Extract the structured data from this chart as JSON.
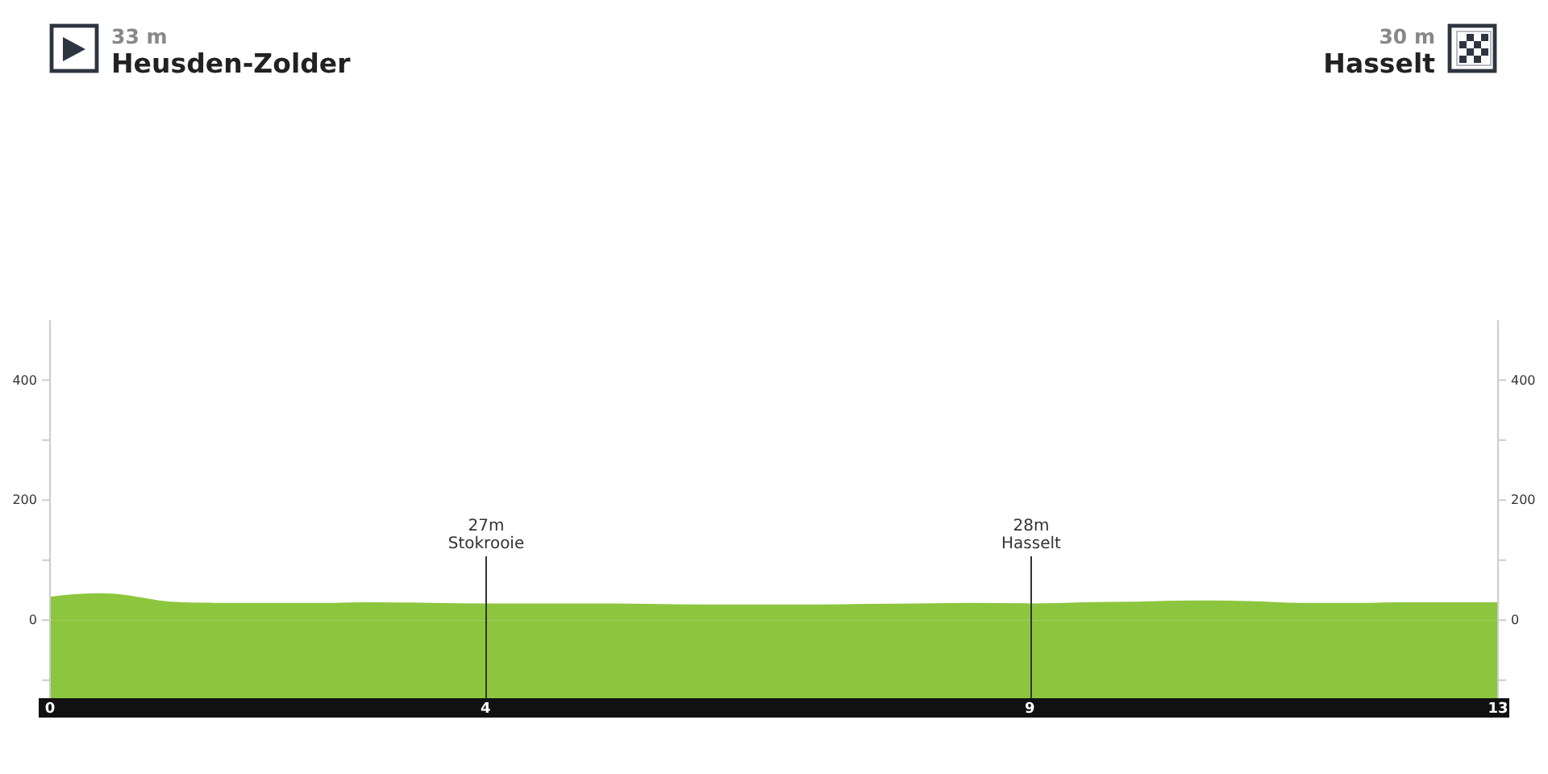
{
  "chart_data": {
    "type": "area",
    "x": [
      0,
      0.2,
      0.45,
      0.7,
      0.9,
      1.1,
      1.5,
      2.0,
      2.5,
      3.0,
      3.5,
      4.0,
      4.5,
      5.0,
      5.5,
      6.0,
      6.5,
      7.0,
      7.5,
      8.0,
      8.5,
      9.0,
      9.5,
      10.0,
      10.5,
      11.0,
      11.5,
      12.0,
      12.5,
      13.0,
      13.3
    ],
    "values": [
      39,
      43,
      45,
      42,
      36,
      31,
      29,
      29,
      29,
      30,
      29,
      28,
      28,
      28,
      27,
      26,
      26,
      26,
      27,
      28,
      29,
      28,
      30,
      31,
      33,
      32,
      29,
      29,
      30,
      30,
      30
    ],
    "color": "#8cc63e",
    "xlim": [
      0,
      13.3
    ],
    "xticks": [
      0,
      4,
      9,
      {
        "value": 13.3,
        "label": "13"
      }
    ],
    "ylim": [
      -130,
      500
    ],
    "yticks": [
      {
        "value": -100,
        "label": null
      },
      0,
      {
        "value": 100,
        "label": null
      },
      200,
      {
        "value": 300,
        "label": null
      },
      400
    ],
    "y2lim": [
      -130,
      500
    ],
    "y2ticks": [
      {
        "value": -100,
        "label": null
      },
      0,
      {
        "value": 100,
        "label": null
      },
      200,
      {
        "value": 300,
        "label": null
      },
      400
    ],
    "bands": [
      {
        "axis": "y",
        "from": -130,
        "to": 0,
        "color": "#8cc63e"
      }
    ],
    "ref_lines": [
      {
        "axis": "x",
        "value": 4,
        "label": "27m\nStokrooie"
      },
      {
        "axis": "x",
        "value": 9,
        "label": "28m\nHasselt"
      }
    ],
    "annotations": [
      "33 m",
      "Heusden-Zolder",
      "30 m",
      "Hasselt"
    ]
  }
}
